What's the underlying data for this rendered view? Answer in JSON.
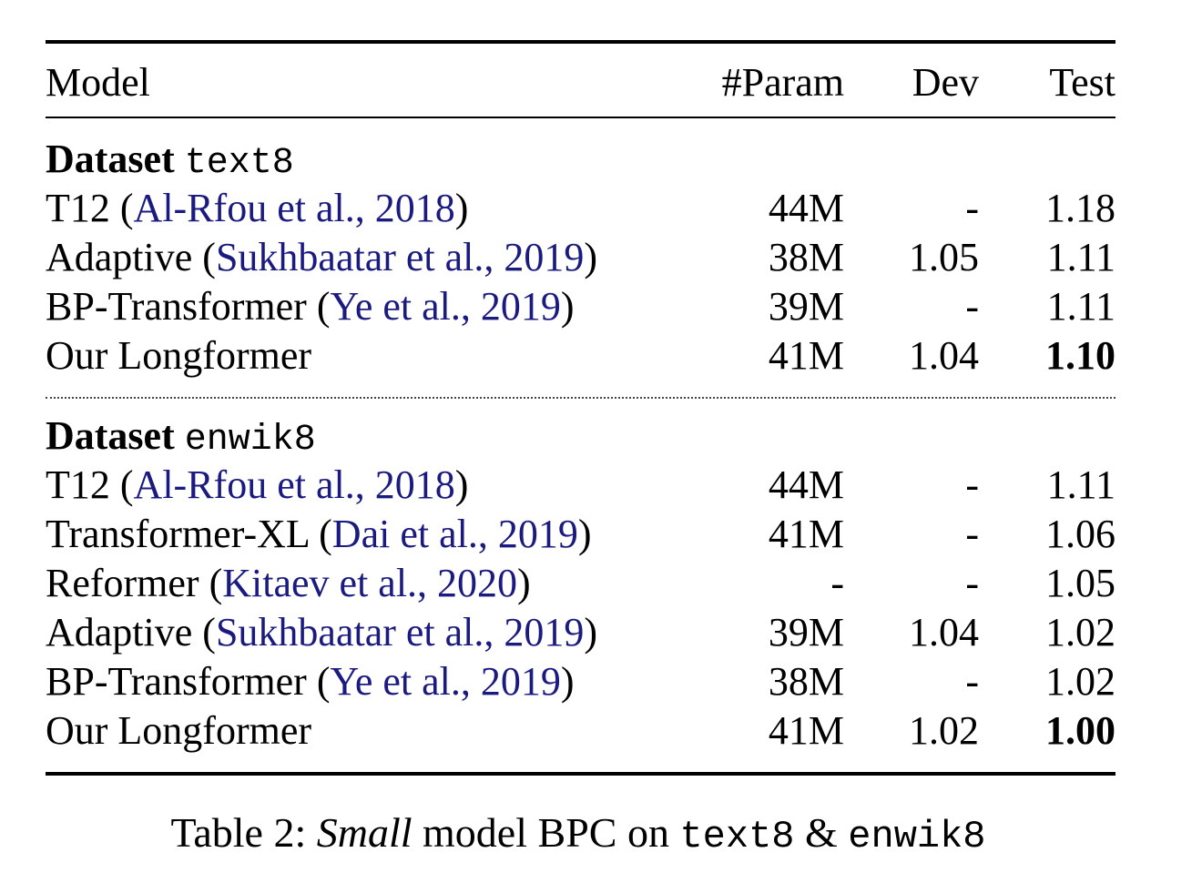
{
  "header": {
    "model": "Model",
    "param": "#Param",
    "dev": "Dev",
    "test": "Test"
  },
  "sections": [
    {
      "label": "Dataset",
      "dataset": "text8",
      "rows": [
        {
          "name": "T12",
          "citation": "Al-Rfou et al., 2018",
          "param": "44M",
          "dev": "-",
          "test": "1.18",
          "best": false
        },
        {
          "name": "Adaptive",
          "citation": "Sukhbaatar et al., 2019",
          "param": "38M",
          "dev": "1.05",
          "test": "1.11",
          "best": false
        },
        {
          "name": "BP-Transformer",
          "citation": "Ye et al., 2019",
          "param": "39M",
          "dev": "-",
          "test": "1.11",
          "best": false
        },
        {
          "name": "Our Longformer",
          "citation": "",
          "param": "41M",
          "dev": "1.04",
          "test": "1.10",
          "best": true
        }
      ]
    },
    {
      "label": "Dataset",
      "dataset": "enwik8",
      "rows": [
        {
          "name": "T12",
          "citation": "Al-Rfou et al., 2018",
          "param": "44M",
          "dev": "-",
          "test": "1.11",
          "best": false
        },
        {
          "name": "Transformer-XL",
          "citation": "Dai et al., 2019",
          "param": "41M",
          "dev": "-",
          "test": "1.06",
          "best": false
        },
        {
          "name": "Reformer",
          "citation": "Kitaev et al., 2020",
          "param": "-",
          "dev": "-",
          "test": "1.05",
          "best": false
        },
        {
          "name": "Adaptive",
          "citation": "Sukhbaatar et al., 2019",
          "param": "39M",
          "dev": "1.04",
          "test": "1.02",
          "best": false
        },
        {
          "name": "BP-Transformer",
          "citation": "Ye et al., 2019",
          "param": "38M",
          "dev": "-",
          "test": "1.02",
          "best": false
        },
        {
          "name": "Our Longformer",
          "citation": "",
          "param": "41M",
          "dev": "1.02",
          "test": "1.00",
          "best": true
        }
      ]
    }
  ],
  "caption": {
    "prefix": "Table 2: ",
    "emph": "Small",
    "middle": " model BPC on ",
    "ds1": "text8",
    "amp": " & ",
    "ds2": "enwik8"
  }
}
